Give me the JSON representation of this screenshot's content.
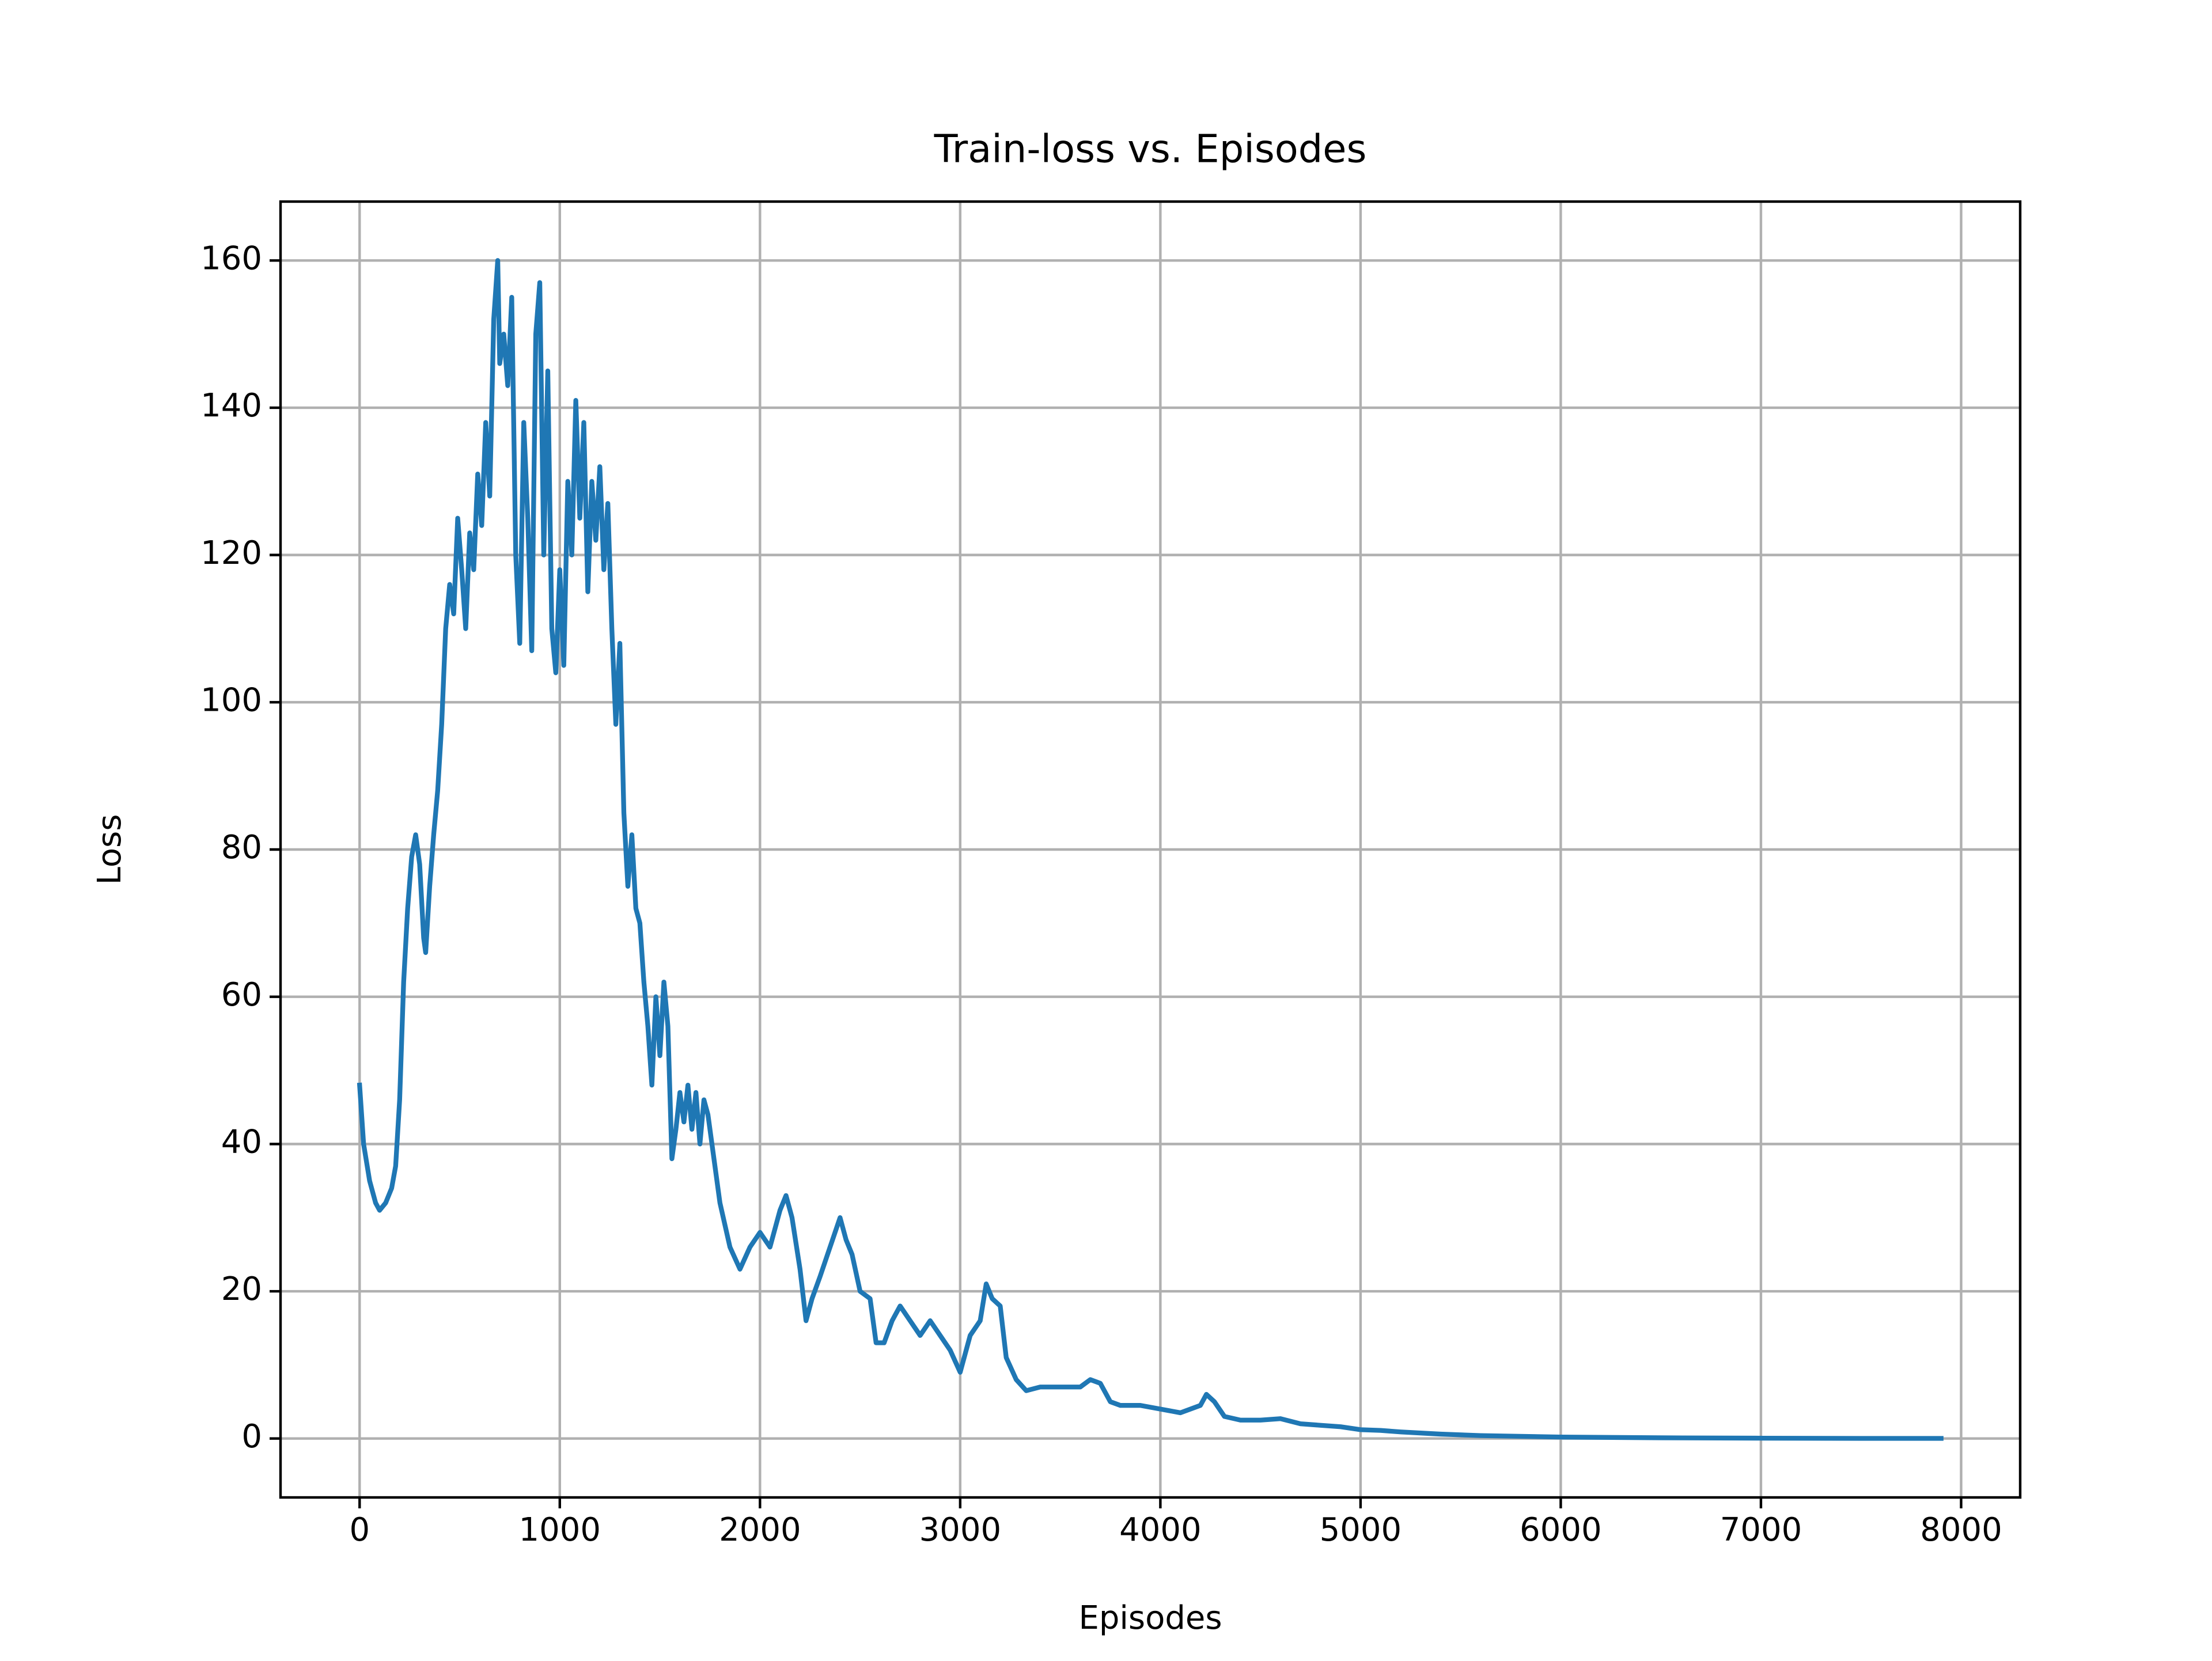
{
  "chart_data": {
    "type": "line",
    "title": "Train-loss vs. Episodes",
    "xlabel": "Episodes",
    "ylabel": "Loss",
    "x": [
      0,
      20,
      50,
      80,
      100,
      130,
      160,
      180,
      200,
      220,
      240,
      260,
      280,
      300,
      320,
      330,
      350,
      370,
      390,
      410,
      430,
      450,
      470,
      490,
      510,
      530,
      550,
      570,
      590,
      610,
      630,
      650,
      670,
      690,
      700,
      720,
      740,
      760,
      780,
      800,
      820,
      840,
      860,
      880,
      900,
      920,
      940,
      960,
      980,
      1000,
      1020,
      1040,
      1060,
      1080,
      1100,
      1120,
      1140,
      1160,
      1180,
      1200,
      1220,
      1240,
      1260,
      1280,
      1300,
      1320,
      1340,
      1360,
      1380,
      1400,
      1420,
      1440,
      1460,
      1480,
      1500,
      1520,
      1540,
      1560,
      1580,
      1600,
      1620,
      1640,
      1660,
      1680,
      1700,
      1720,
      1740,
      1760,
      1800,
      1850,
      1900,
      1950,
      2000,
      2050,
      2100,
      2130,
      2160,
      2200,
      2230,
      2260,
      2300,
      2350,
      2400,
      2430,
      2460,
      2500,
      2550,
      2580,
      2620,
      2660,
      2700,
      2750,
      2800,
      2850,
      2900,
      2950,
      3000,
      3050,
      3100,
      3130,
      3160,
      3200,
      3230,
      3280,
      3330,
      3400,
      3500,
      3600,
      3650,
      3700,
      3750,
      3800,
      3900,
      4000,
      4100,
      4200,
      4230,
      4270,
      4320,
      4400,
      4500,
      4600,
      4700,
      4800,
      4900,
      5000,
      5100,
      5200,
      5400,
      5600,
      5800,
      6000,
      6500,
      7000,
      7500,
      7900
    ],
    "series": [
      {
        "name": "Train-loss",
        "color": "#1f77b4",
        "values": [
          48,
          40,
          35,
          32,
          31,
          32,
          34,
          37,
          46,
          62,
          72,
          79,
          82,
          78,
          68,
          66,
          75,
          82,
          88,
          97,
          110,
          116,
          112,
          125,
          118,
          110,
          123,
          118,
          131,
          124,
          138,
          128,
          152,
          160,
          146,
          150,
          143,
          155,
          120,
          108,
          138,
          125,
          107,
          150,
          157,
          120,
          145,
          110,
          104,
          118,
          105,
          130,
          120,
          141,
          125,
          138,
          115,
          130,
          122,
          132,
          118,
          127,
          110,
          97,
          108,
          85,
          75,
          82,
          72,
          70,
          62,
          56,
          48,
          60,
          52,
          62,
          56,
          38,
          42,
          47,
          43,
          48,
          42,
          47,
          40,
          46,
          44,
          40,
          32,
          26,
          23,
          26,
          28,
          26,
          31,
          33,
          30,
          23,
          16,
          19,
          22,
          26,
          30,
          27,
          25,
          20,
          19,
          13,
          13,
          16,
          18,
          16,
          14,
          16,
          14,
          12,
          9,
          14,
          16,
          21,
          19,
          18,
          11,
          8,
          6.5,
          7,
          7,
          7,
          8,
          7.5,
          5,
          4.5,
          4.5,
          4,
          3.5,
          4.5,
          6,
          5,
          3,
          2.5,
          2.5,
          2.7,
          2,
          1.8,
          1.6,
          1.2,
          1.1,
          0.9,
          0.6,
          0.4,
          0.3,
          0.2,
          0.1,
          0.05,
          0.02,
          0.02
        ]
      }
    ],
    "xlim": [
      -395,
      8295
    ],
    "ylim": [
      -8,
      168
    ],
    "xticks": [
      0,
      1000,
      2000,
      3000,
      4000,
      5000,
      6000,
      7000,
      8000
    ],
    "yticks": [
      0,
      20,
      40,
      60,
      80,
      100,
      120,
      140,
      160
    ],
    "grid": true
  }
}
